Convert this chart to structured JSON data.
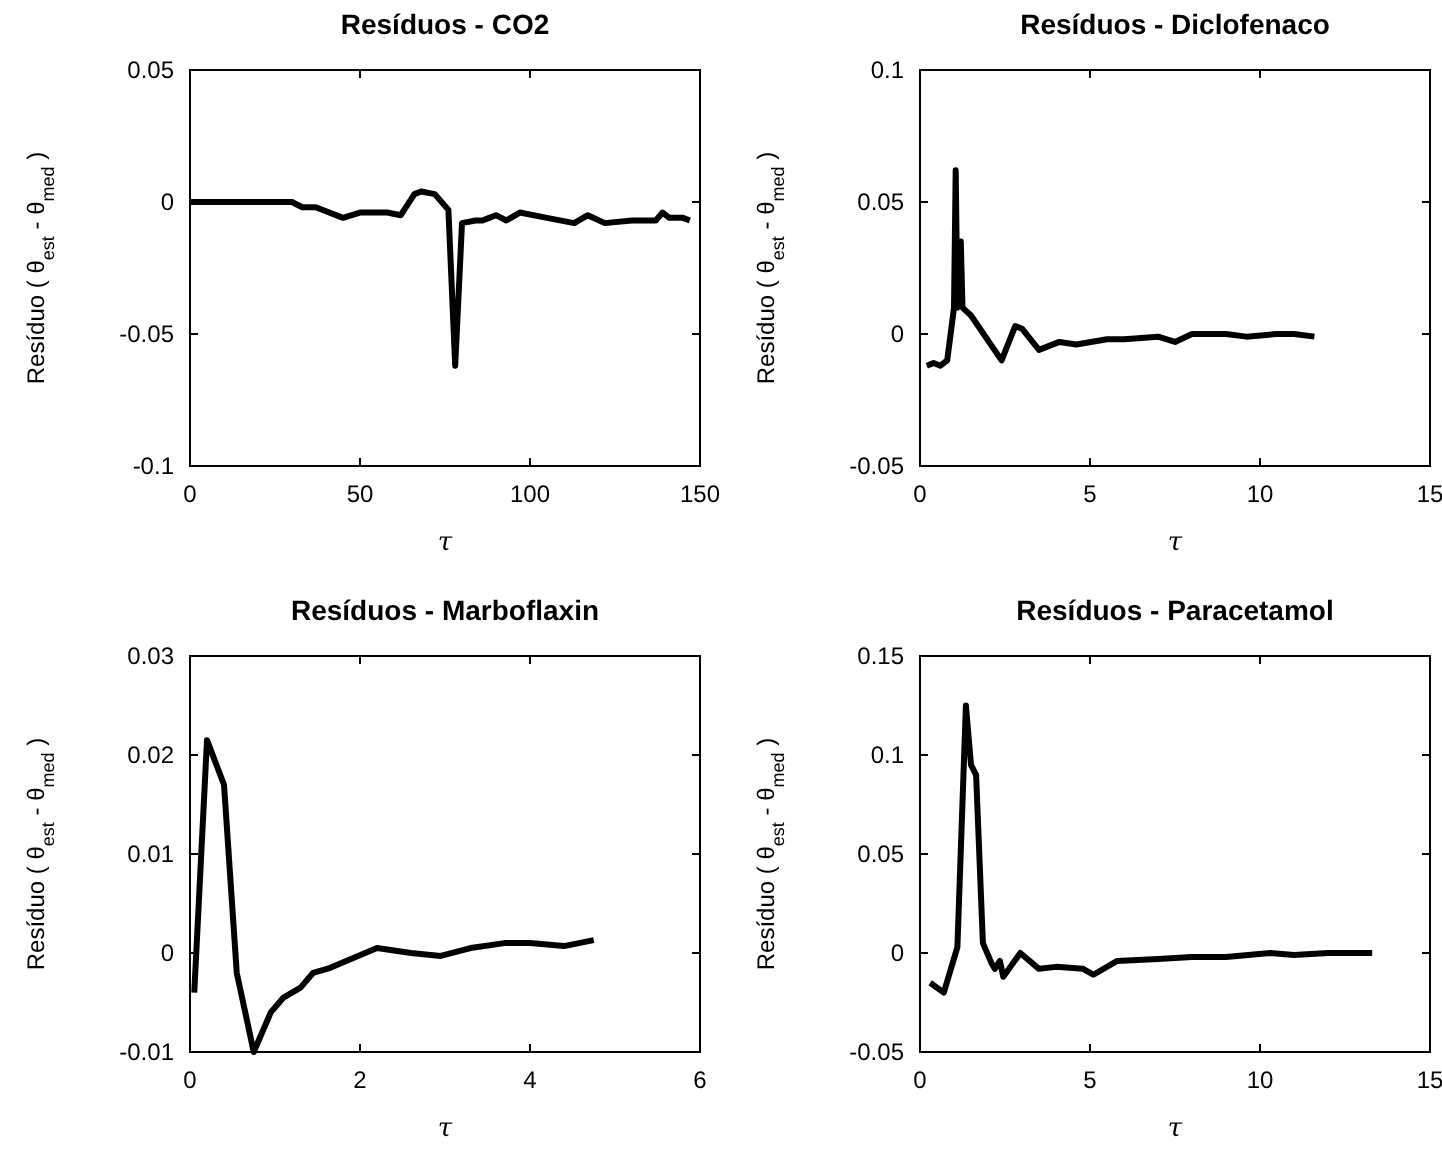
{
  "chart_data": [
    {
      "type": "line",
      "title": "Resíduos - CO2",
      "xlabel": "τ",
      "ylabel": "Resíduo ( θ$_{est}$ - θ$_{med}$ )",
      "xlim": [
        0,
        150
      ],
      "xticks": [
        0,
        50,
        100,
        150
      ],
      "ylim": [
        -0.1,
        0.05
      ],
      "yticks": [
        -0.1,
        -0.05,
        0,
        0.05
      ],
      "x": [
        0,
        30,
        33,
        37,
        45,
        50,
        58,
        62,
        66,
        68,
        72,
        76,
        78,
        80,
        84,
        86,
        88,
        90,
        93,
        97,
        105,
        113,
        117,
        122,
        130,
        137,
        139,
        141,
        145,
        147
      ],
      "series": [
        {
          "color": "#000000",
          "values": [
            0,
            0,
            -0.002,
            -0.002,
            -0.006,
            -0.004,
            -0.004,
            -0.005,
            0.003,
            0.004,
            0.003,
            -0.003,
            -0.062,
            -0.008,
            -0.007,
            -0.007,
            -0.006,
            -0.005,
            -0.007,
            -0.004,
            -0.006,
            -0.008,
            -0.005,
            -0.008,
            -0.007,
            -0.007,
            -0.004,
            -0.006,
            -0.006,
            -0.007
          ]
        }
      ]
    },
    {
      "type": "line",
      "title": "Resíduos - Diclofenaco",
      "xlabel": "τ",
      "ylabel": "Resíduo ( θ$_{est}$ - θ$_{med}$ )",
      "xlim": [
        0,
        15
      ],
      "xticks": [
        0,
        5,
        10,
        15
      ],
      "ylim": [
        -0.05,
        0.1
      ],
      "yticks": [
        -0.05,
        0,
        0.05,
        0.1
      ],
      "x": [
        0.2,
        0.4,
        0.6,
        0.8,
        1.0,
        1.05,
        1.1,
        1.2,
        1.25,
        1.5,
        2.4,
        2.8,
        3.0,
        3.5,
        4.1,
        4.6,
        5.5,
        6,
        7,
        7.5,
        8,
        9,
        9.6,
        10.5,
        11,
        11.6
      ],
      "series": [
        {
          "color": "#000000",
          "values": [
            -0.012,
            -0.011,
            -0.012,
            -0.01,
            0.01,
            0.062,
            0.01,
            0.035,
            0.01,
            0.007,
            -0.01,
            0.003,
            0.002,
            -0.006,
            -0.003,
            -0.004,
            -0.002,
            -0.002,
            -0.001,
            -0.003,
            0,
            0,
            -0.001,
            0,
            0,
            -0.001
          ]
        }
      ]
    },
    {
      "type": "line",
      "title": "Resíduos - Marboflaxin",
      "xlabel": "τ",
      "ylabel": "Resíduo ( θ$_{est}$ - θ$_{med}$ )",
      "xlim": [
        0,
        6
      ],
      "xticks": [
        0,
        2,
        4,
        6
      ],
      "ylim": [
        -0.01,
        0.03
      ],
      "yticks": [
        -0.01,
        0,
        0.01,
        0.02,
        0.03
      ],
      "x": [
        0.05,
        0.2,
        0.4,
        0.55,
        0.75,
        0.95,
        1.1,
        1.3,
        1.45,
        1.65,
        2.2,
        2.6,
        2.95,
        3.3,
        3.7,
        4.0,
        4.4,
        4.75
      ],
      "series": [
        {
          "color": "#000000",
          "values": [
            -0.004,
            0.0215,
            0.017,
            -0.002,
            -0.01,
            -0.006,
            -0.0045,
            -0.0035,
            -0.002,
            -0.0015,
            0.0005,
            0,
            -0.0003,
            0.0005,
            0.001,
            0.001,
            0.0007,
            0.0013
          ]
        }
      ]
    },
    {
      "type": "line",
      "title": "Resíduos - Paracetamol",
      "xlabel": "τ",
      "ylabel": "Resíduo ( θ$_{est}$ - θ$_{med}$ )",
      "xlim": [
        0,
        15
      ],
      "xticks": [
        0,
        5,
        10,
        15
      ],
      "ylim": [
        -0.05,
        0.15
      ],
      "yticks": [
        -0.05,
        0,
        0.05,
        0.1,
        0.15
      ],
      "x": [
        0.3,
        0.7,
        1.1,
        1.35,
        1.5,
        1.65,
        1.85,
        2.1,
        2.2,
        2.35,
        2.45,
        2.95,
        3.5,
        4,
        4.8,
        5.1,
        5.8,
        7,
        8,
        9,
        10.3,
        11,
        12,
        13.3
      ],
      "series": [
        {
          "color": "#000000",
          "values": [
            -0.015,
            -0.02,
            0.003,
            0.125,
            0.095,
            0.09,
            0.005,
            -0.005,
            -0.008,
            -0.004,
            -0.012,
            0,
            -0.008,
            -0.007,
            -0.008,
            -0.011,
            -0.004,
            -0.003,
            -0.002,
            -0.002,
            0,
            -0.001,
            0,
            0
          ]
        }
      ]
    }
  ]
}
